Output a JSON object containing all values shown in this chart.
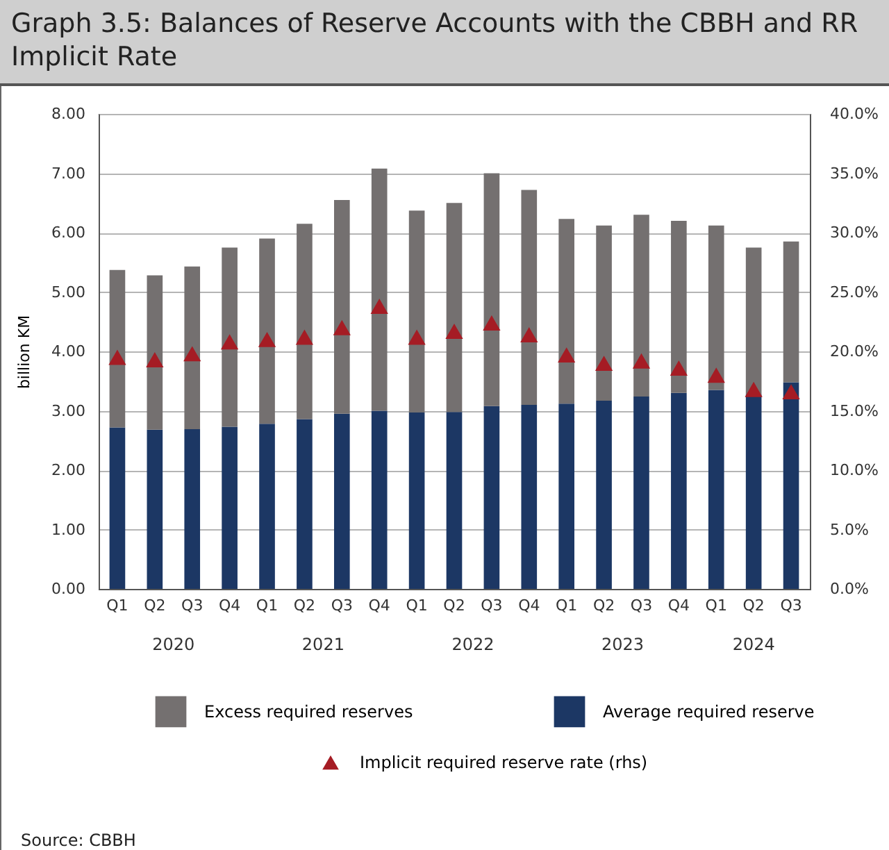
{
  "chart_data": {
    "type": "bar",
    "title": "Graph 3.5: Balances of Reserve Accounts with the CBBH and RR Implicit Rate",
    "ylabel": "billion KM",
    "categories": [
      "Q1",
      "Q2",
      "Q3",
      "Q4",
      "Q1",
      "Q2",
      "Q3",
      "Q4",
      "Q1",
      "Q2",
      "Q3",
      "Q4",
      "Q1",
      "Q2",
      "Q3",
      "Q4",
      "Q1",
      "Q2",
      "Q3"
    ],
    "stacked": true,
    "series": [
      {
        "name": "Average required reserve",
        "color": "#1c3764",
        "values": [
          2.72,
          2.68,
          2.69,
          2.73,
          2.78,
          2.86,
          2.95,
          3.0,
          2.97,
          2.98,
          3.08,
          3.1,
          3.12,
          3.17,
          3.24,
          3.3,
          3.35,
          3.28,
          3.48
        ]
      },
      {
        "name": "Excess required reserves",
        "color": "#747070",
        "values": [
          2.65,
          2.6,
          2.74,
          3.02,
          3.12,
          3.29,
          3.6,
          4.08,
          3.4,
          3.52,
          3.92,
          3.62,
          3.11,
          2.95,
          3.06,
          2.9,
          2.77,
          2.47,
          2.37
        ]
      },
      {
        "name": "Implicit required reserve rate (rhs)",
        "type": "scatter",
        "axis": "y2",
        "marker": "triangle",
        "color": "#a51c24",
        "values": [
          19.5,
          19.3,
          19.8,
          20.8,
          21.0,
          21.2,
          22.0,
          23.8,
          21.2,
          21.7,
          22.4,
          21.4,
          19.7,
          19.0,
          19.2,
          18.6,
          18.0,
          16.8,
          16.6
        ]
      }
    ],
    "ylim": [
      0,
      8
    ],
    "yticks": [
      {
        "value": 0,
        "label": "0.00"
      },
      {
        "value": 1,
        "label": "1.00"
      },
      {
        "value": 2,
        "label": "2.00"
      },
      {
        "value": 3,
        "label": "3.00"
      },
      {
        "value": 4,
        "label": "4.00"
      },
      {
        "value": 5,
        "label": "5.00"
      },
      {
        "value": 6,
        "label": "6.00"
      },
      {
        "value": 7,
        "label": "7.00"
      },
      {
        "value": 8,
        "label": "8.00"
      }
    ],
    "y2lim": [
      0,
      40
    ],
    "y2ticks": [
      {
        "value": 0,
        "label": "0.0%"
      },
      {
        "value": 5,
        "label": "5.0%"
      },
      {
        "value": 10,
        "label": "10.0%"
      },
      {
        "value": 15,
        "label": "15.0%"
      },
      {
        "value": 20,
        "label": "20.0%"
      },
      {
        "value": 25,
        "label": "25.0%"
      },
      {
        "value": 30,
        "label": "30.0%"
      },
      {
        "value": 35,
        "label": "35.0%"
      },
      {
        "value": 40,
        "label": "40.0%"
      }
    ],
    "grid": "y",
    "legend": "bottom",
    "annotations": [
      "2020",
      "2021",
      "2022",
      "2023",
      "2024",
      "Source: CBBH"
    ]
  }
}
